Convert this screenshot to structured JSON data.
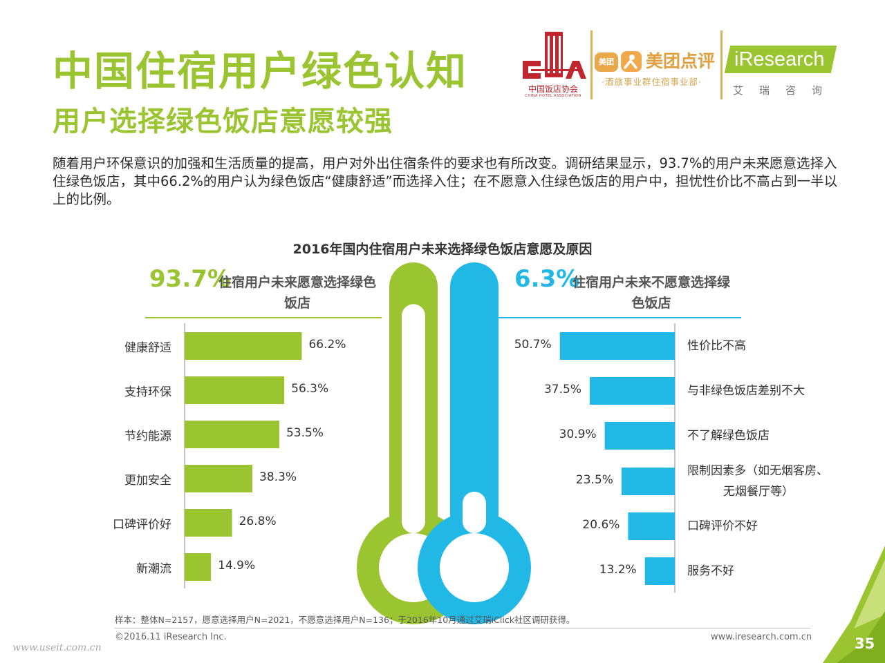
{
  "header": {
    "title": "中国住宿用户绿色认知",
    "subtitle": "用户选择绿色饭店意愿较强",
    "description": "随着用户环保意识的加强和生活质量的提高，用户对外出住宿条件的要求也有所改变。调研结果显示，93.7%的用户未来愿意选择入住绿色饭店，其中66.2%的用户认为绿色饭店“健康舒适”而选择入住；在不愿意入住绿色饭店的用户中，担忧性价比不高占到一半以上的比例。"
  },
  "logos": {
    "cha_name": "中国饭店协会",
    "cha_en": "CHINA HOTEL ASSOCIATION",
    "meituan_badge": "美团",
    "meituan_name": "美团点评",
    "meituan_sub": "·酒旅事业群住宿事业部·",
    "iresearch_name": "iResearch",
    "iresearch_sub": "艾瑞咨询"
  },
  "colors": {
    "green": "#9bc431",
    "blue": "#22b8e6"
  },
  "chart_data": {
    "type": "bar",
    "title": "2016年国内住宿用户未来选择绿色饭店意愿及原因",
    "left": {
      "percent": "93.7%",
      "heading": "住宿用户未来愿意选择绿色饭店",
      "categories": [
        "健康舒适",
        "支持环保",
        "节约能源",
        "更加安全",
        "口碑评价好",
        "新潮流"
      ],
      "values": [
        66.2,
        56.3,
        53.5,
        38.3,
        26.8,
        14.9
      ],
      "value_labels": [
        "66.2%",
        "56.3%",
        "53.5%",
        "38.3%",
        "26.8%",
        "14.9%"
      ]
    },
    "right": {
      "percent": "6.3%",
      "heading": "住宿用户未来不愿意选择绿色饭店",
      "categories": [
        "性价比不高",
        "与非绿色饭店差别不大",
        "不了解绿色饭店",
        "限制因素多（如无烟客房、无烟餐厅等）",
        "口碑评价不好",
        "服务不好"
      ],
      "category_lines": [
        [
          "性价比不高"
        ],
        [
          "与非绿色饭店差别不大"
        ],
        [
          "不了解绿色饭店"
        ],
        [
          "限制因素多（如无烟客房、",
          "无烟餐厅等）"
        ],
        [
          "口碑评价不好"
        ],
        [
          "服务不好"
        ]
      ],
      "values": [
        50.7,
        37.5,
        30.9,
        23.5,
        20.6,
        13.2
      ],
      "value_labels": [
        "50.7%",
        "37.5%",
        "30.9%",
        "23.5%",
        "20.6%",
        "13.2%"
      ]
    },
    "thermometer": {
      "green_fill": 93.7,
      "blue_fill": 6.3
    }
  },
  "footer": {
    "sample": "样本：整体N=2157，愿意选择用户N=2021，不愿意选择用户N=136；于2016年10月通过艾瑞iClick社区调研获得。",
    "copyright": "©2016.11 iResearch Inc.",
    "website": "www.iresearch.com.cn",
    "watermark": "www.useit.com.cn",
    "page_number": "35"
  }
}
